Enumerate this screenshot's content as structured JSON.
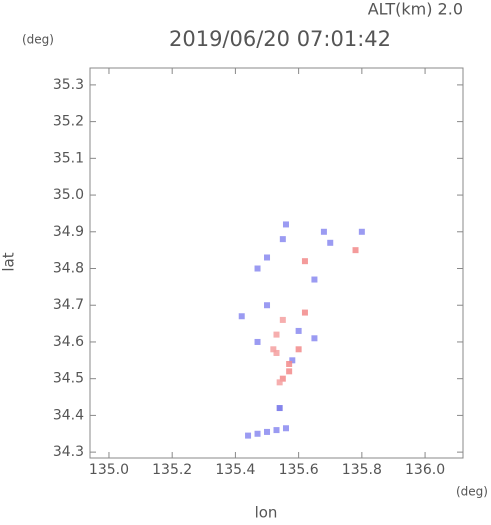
{
  "chart_data": {
    "type": "scatter",
    "title": "2019/06/20 07:01:42",
    "subtitle": "ALT(km) 2.0",
    "x_label": "lon",
    "y_label": "lat",
    "x_unit": "(deg)",
    "y_unit": "(deg)",
    "xlim": [
      134.94,
      136.12
    ],
    "ylim": [
      34.284,
      35.346
    ],
    "xticks": [
      {
        "value": 135.0,
        "label": "135.0"
      },
      135.2,
      135.4,
      135.6,
      135.8,
      {
        "value": 136.0,
        "label": "136.0"
      }
    ],
    "yticks": [
      34.3,
      34.4,
      34.5,
      34.6,
      34.7,
      34.8,
      34.9,
      {
        "value": 35.0,
        "label": "35.0"
      },
      35.1,
      35.2,
      35.3
    ],
    "x": [
      135.54,
      135.44,
      135.47,
      135.5,
      135.53,
      135.56,
      135.55,
      135.57,
      135.54,
      135.52,
      135.6,
      135.58,
      135.55,
      135.62,
      135.5,
      135.42,
      135.53,
      135.47,
      135.6,
      135.65,
      135.5,
      135.55,
      135.62,
      135.7,
      135.78,
      135.8,
      135.65,
      135.47,
      135.56,
      135.57,
      135.53,
      135.68
    ],
    "y": [
      34.42,
      34.345,
      34.35,
      34.355,
      34.36,
      34.365,
      34.5,
      34.52,
      34.49,
      34.58,
      34.58,
      34.55,
      34.66,
      34.68,
      34.7,
      34.67,
      34.62,
      34.6,
      34.63,
      34.61,
      34.83,
      34.88,
      34.82,
      34.87,
      34.85,
      34.9,
      34.77,
      34.8,
      34.92,
      34.54,
      34.57,
      34.9
    ],
    "colors": [
      "#6f6fe8",
      "#8a8af0",
      "#8a8af0",
      "#8a8af0",
      "#8a8af0",
      "#8a8af0",
      "#f28a8a",
      "#f28a8a",
      "#f5a0a0",
      "#f5a0a0",
      "#f28a8a",
      "#8a8af0",
      "#f5a0a0",
      "#f28a8a",
      "#8a8af0",
      "#8a8af0",
      "#f5a0a0",
      "#8a8af0",
      "#8a8af0",
      "#8a8af0",
      "#8a8af0",
      "#8a8af0",
      "#f28a8a",
      "#8a8af0",
      "#f28a8a",
      "#8a8af0",
      "#8a8af0",
      "#8a8af0",
      "#8a8af0",
      "#f28a8a",
      "#f5a0a0",
      "#8a8af0"
    ]
  }
}
